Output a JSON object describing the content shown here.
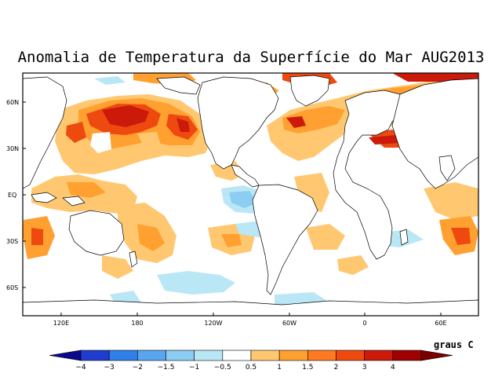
{
  "title": "Anomalia de Temperatura da Superfície do Mar AUG2013",
  "y_axis": {
    "ticks": [
      "60N",
      "30N",
      "EQ",
      "30S",
      "60S"
    ]
  },
  "x_axis": {
    "ticks": [
      "120E",
      "180",
      "120W",
      "60W",
      "0",
      "60E"
    ]
  },
  "colorbar": {
    "unit": "graus C",
    "labels": [
      "−4",
      "−3",
      "−2",
      "−1.5",
      "−1",
      "−0.5",
      "0.5",
      "1",
      "1.5",
      "2",
      "3",
      "4"
    ],
    "colors": [
      "#0a0a8a",
      "#1e3ccd",
      "#2e7fe6",
      "#5aa5ef",
      "#8ccdf3",
      "#b9e7f6",
      "#ffffff",
      "#ffc870",
      "#ffa030",
      "#ff7a20",
      "#ee4a10",
      "#cc1a0a",
      "#a00000",
      "#7a0000"
    ]
  },
  "palette": {
    "frame": "#000000",
    "land": "#ffffff"
  }
}
